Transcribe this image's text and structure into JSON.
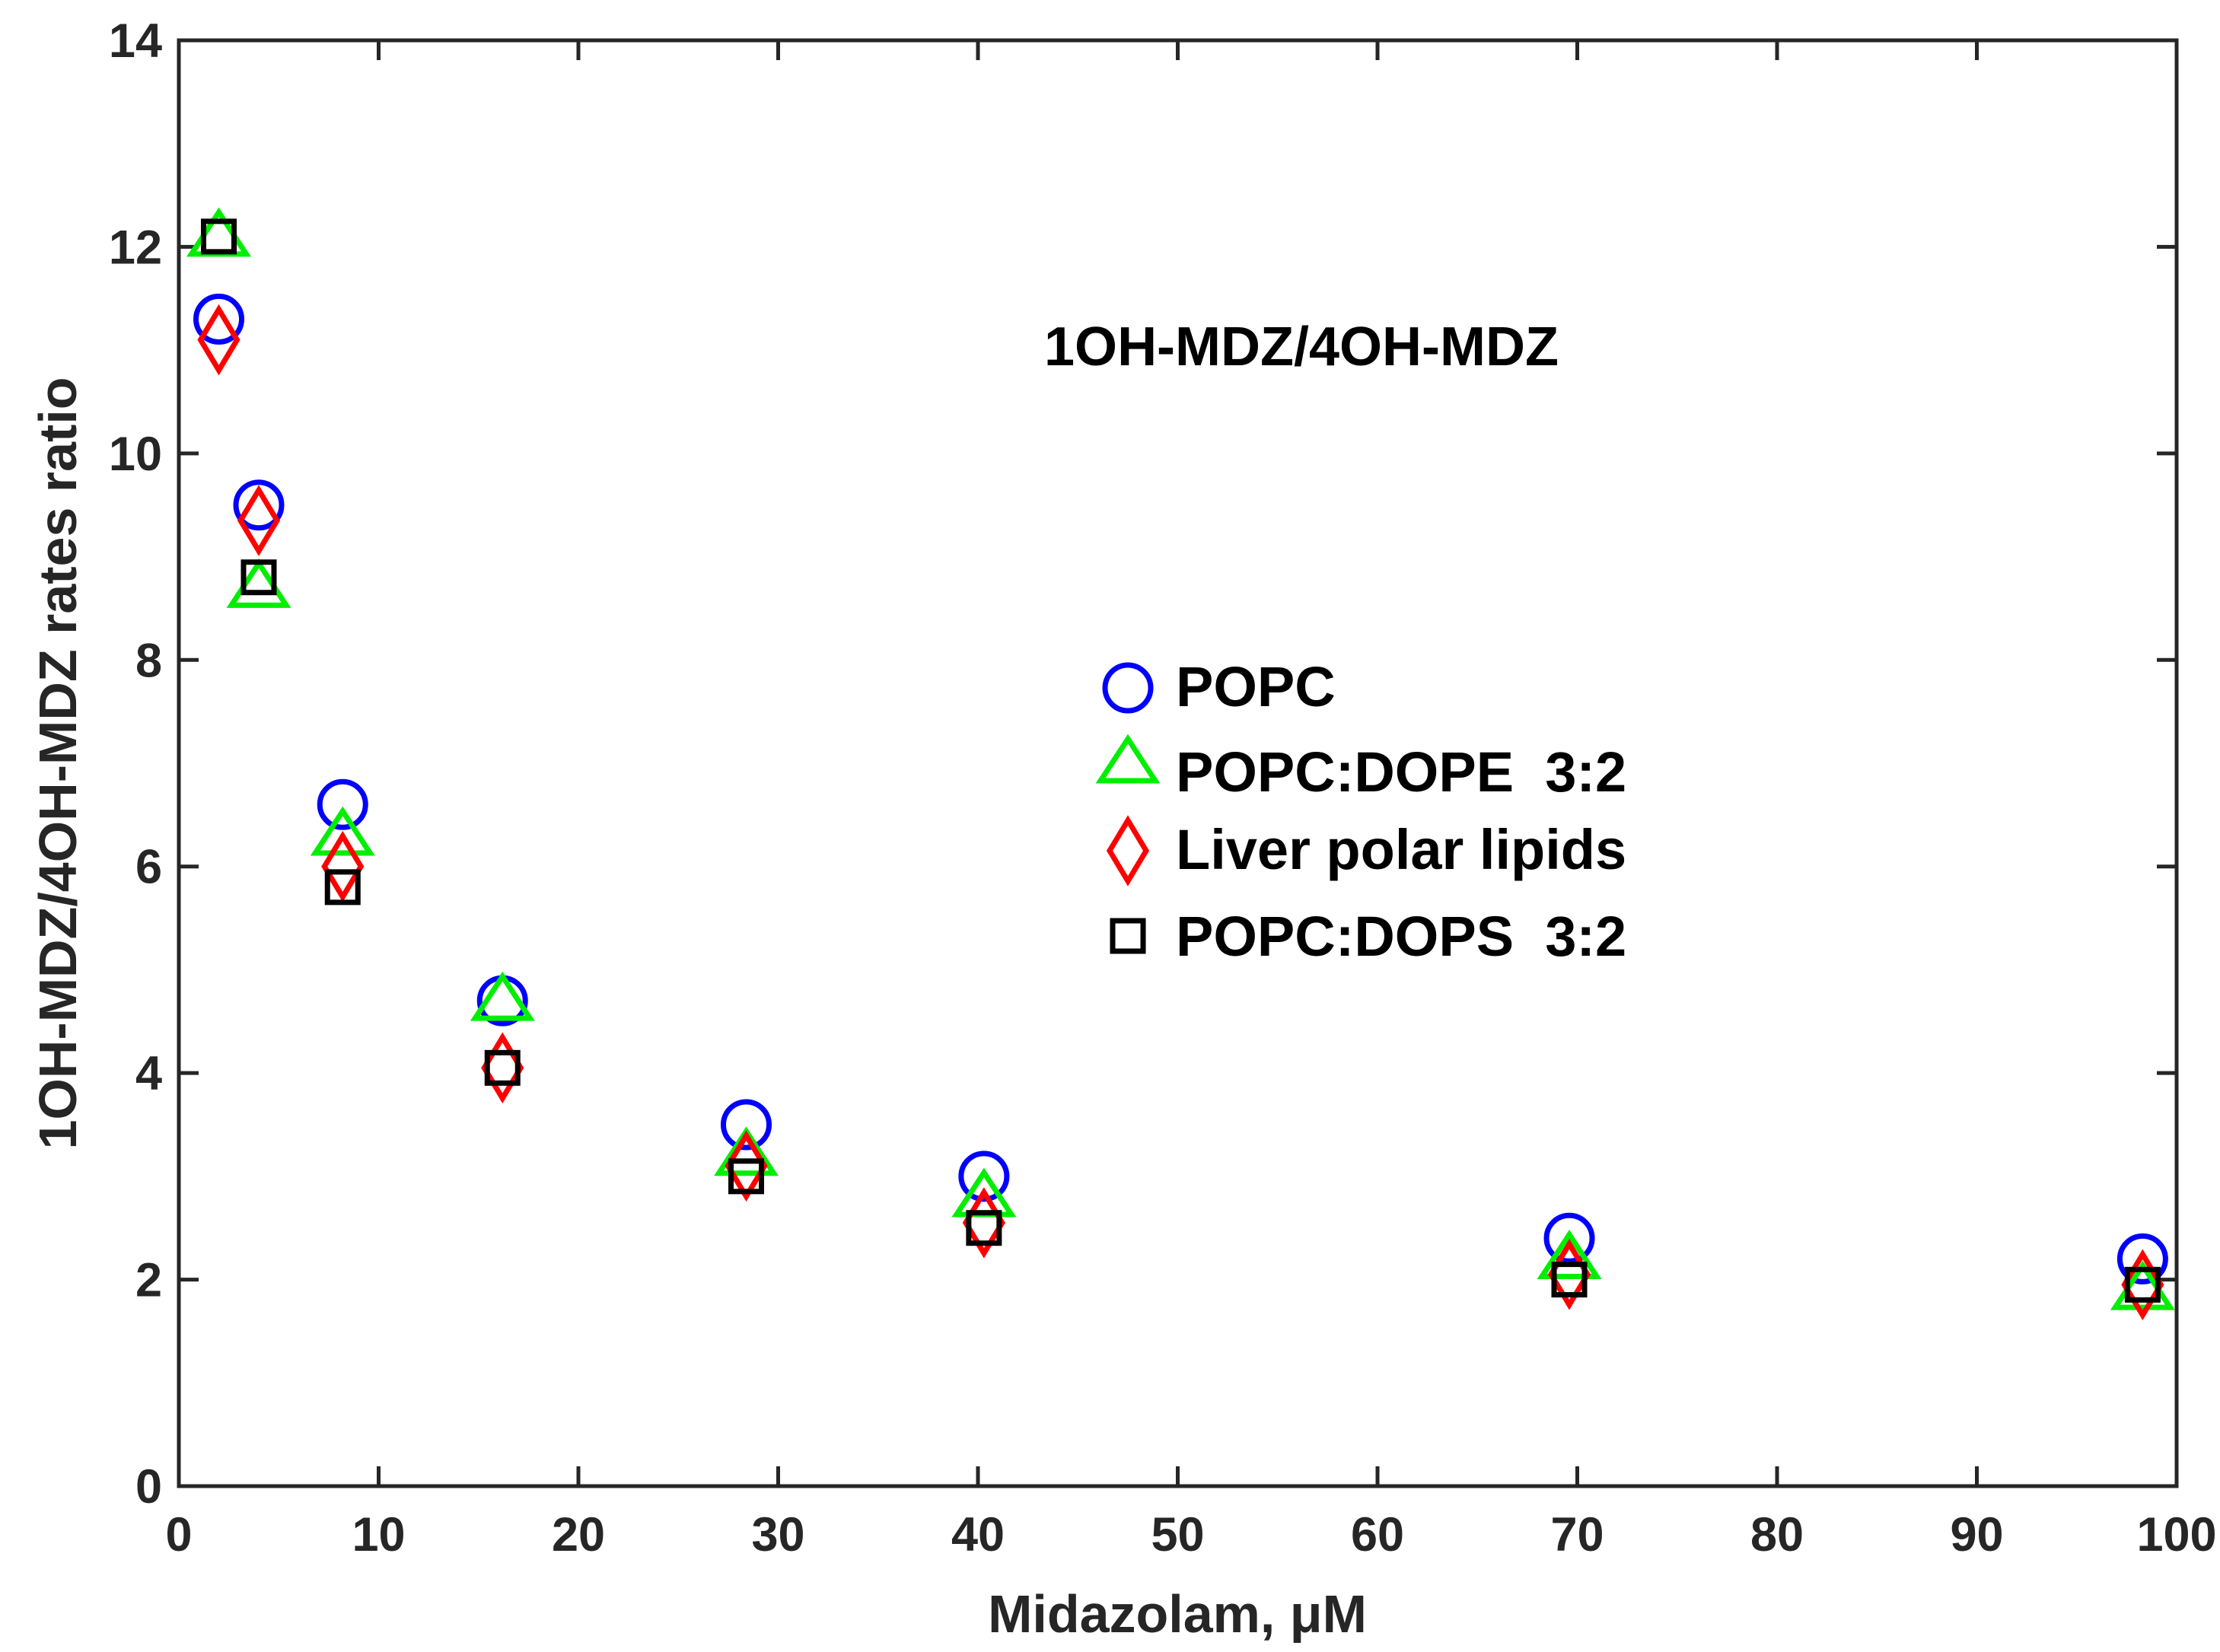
{
  "chart_data": {
    "type": "scatter",
    "title": "",
    "annotation": "1OH-MDZ/4OH-MDZ",
    "xlabel": "Midazolam, μM",
    "ylabel": "1OH-MDZ/4OH-MDZ rates ratio",
    "xlim": [
      0,
      100
    ],
    "ylim": [
      0,
      14
    ],
    "xticks": [
      0,
      10,
      20,
      30,
      40,
      50,
      60,
      70,
      80,
      90,
      100
    ],
    "yticks": [
      0,
      2,
      4,
      6,
      8,
      10,
      12,
      14
    ],
    "grid": false,
    "legend_position": "center-right",
    "series": [
      {
        "name": "POPC",
        "marker": "circle",
        "color": "#0000ff",
        "x": [
          2,
          4,
          8.2,
          16.2,
          28.4,
          40.3,
          69.6,
          98.3
        ],
        "y": [
          11.3,
          9.5,
          6.6,
          4.7,
          3.5,
          3.0,
          2.4,
          2.2
        ]
      },
      {
        "name": "POPC:DOPE  3:2",
        "marker": "triangle",
        "color": "#00ee00",
        "x": [
          2,
          4,
          8.2,
          16.2,
          28.4,
          40.3,
          69.6,
          98.3
        ],
        "y": [
          12.1,
          8.7,
          6.3,
          4.7,
          3.2,
          2.8,
          2.2,
          1.9
        ]
      },
      {
        "name": "Liver polar lipids",
        "marker": "diamond",
        "color": "#ff0000",
        "x": [
          2,
          4,
          8.2,
          16.2,
          28.4,
          40.3,
          69.6,
          98.3
        ],
        "y": [
          11.1,
          9.35,
          6.0,
          4.05,
          3.1,
          2.55,
          2.05,
          1.95
        ]
      },
      {
        "name": "POPC:DOPS  3:2",
        "marker": "square",
        "color": "#000000",
        "x": [
          2,
          4,
          8.2,
          16.2,
          28.4,
          40.3,
          69.6,
          98.3
        ],
        "y": [
          12.1,
          8.8,
          5.8,
          4.05,
          3.0,
          2.5,
          2.0,
          1.95
        ]
      }
    ]
  }
}
